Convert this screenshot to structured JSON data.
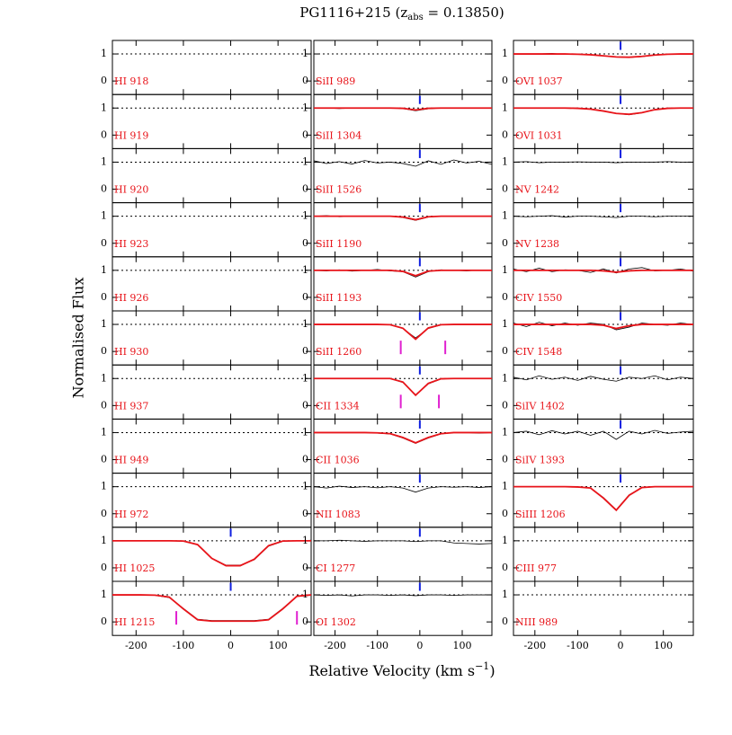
{
  "chart_data": {
    "type": "line",
    "title": "PG1116+215 (z",
    "title_sub": "abs",
    "title_end": " = 0.13850)",
    "x_label": "Relative Velocity (km s",
    "x_label_sup": "−1",
    "x_label_end": ")",
    "y_label": "Normalised Flux",
    "xlim": [
      -250,
      170
    ],
    "ylim": [
      -0.5,
      1.5
    ],
    "xticks": [
      -200,
      -100,
      0,
      100
    ],
    "yticks": [
      0,
      1
    ],
    "rows": 11,
    "data_color": "#000000",
    "model_color": "#e8141a",
    "label_color": "#e8141a",
    "component_color": "#1020e0",
    "blend_color": "#e020d0",
    "component": 0,
    "x": [
      -250,
      -220,
      -190,
      -160,
      -130,
      -100,
      -70,
      -40,
      -10,
      20,
      50,
      80,
      110,
      140,
      170
    ],
    "panels": [
      {
        "name": "HI 918"
      },
      {
        "name": "HI 919"
      },
      {
        "name": "HI 920"
      },
      {
        "name": "HI 923"
      },
      {
        "name": "HI 926"
      },
      {
        "name": "HI 930"
      },
      {
        "name": "HI 937"
      },
      {
        "name": "HI 949"
      },
      {
        "name": "HI 972"
      },
      {
        "name": "HI 1025",
        "values": [
          1,
          1,
          1,
          1,
          1,
          0.98,
          0.85,
          0.35,
          0.1,
          0.1,
          0.3,
          0.8,
          0.98,
          1,
          1.02
        ],
        "model": [
          1,
          1,
          1,
          1,
          1,
          0.99,
          0.86,
          0.35,
          0.08,
          0.08,
          0.32,
          0.82,
          0.99,
          1,
          1
        ]
      },
      {
        "name": "HI 1215",
        "values": [
          1,
          1,
          1,
          0.98,
          0.9,
          0.5,
          0.1,
          0.05,
          0.05,
          0.05,
          0.05,
          0.1,
          0.5,
          0.95,
          1
        ],
        "model": [
          1,
          1,
          1,
          0.99,
          0.92,
          0.48,
          0.08,
          0.03,
          0.03,
          0.03,
          0.03,
          0.08,
          0.48,
          0.95,
          1
        ],
        "blends": [
          -115,
          140
        ]
      },
      {
        "name": "SiII 989"
      },
      {
        "name": "SiII 1304",
        "values": [
          1,
          1,
          0.98,
          1,
          1,
          1,
          1,
          0.98,
          0.9,
          0.97,
          1,
          1,
          1,
          1,
          1
        ],
        "model": [
          1,
          1,
          1,
          1,
          1,
          1,
          1,
          0.99,
          0.93,
          0.99,
          1,
          1,
          1,
          1,
          1
        ]
      },
      {
        "name": "SiII 1526",
        "values": [
          1.05,
          0.95,
          1.02,
          0.93,
          1.06,
          0.97,
          1,
          0.95,
          0.85,
          1.05,
          0.92,
          1.08,
          0.97,
          1.03,
          0.92
        ]
      },
      {
        "name": "SiII 1190",
        "values": [
          1,
          1.02,
          0.98,
          1,
          1.01,
          0.99,
          1,
          0.95,
          0.85,
          0.97,
          1,
          1.01,
          1,
          0.99,
          1
        ],
        "model": [
          1,
          1,
          1,
          1,
          1,
          1,
          1,
          0.97,
          0.87,
          0.98,
          1,
          1,
          1,
          1,
          1
        ]
      },
      {
        "name": "SiII 1193",
        "values": [
          1,
          0.98,
          1.02,
          0.97,
          1,
          1.03,
          0.98,
          0.95,
          0.75,
          0.95,
          1.02,
          1,
          0.98,
          1.01,
          1
        ],
        "model": [
          1,
          1,
          1,
          1,
          1,
          1,
          1,
          0.96,
          0.8,
          0.97,
          1,
          1,
          1,
          1,
          1
        ]
      },
      {
        "name": "SiII 1260",
        "values": [
          1,
          1,
          1,
          1,
          1,
          1,
          0.98,
          0.85,
          0.5,
          0.85,
          0.98,
          1,
          1,
          1,
          1
        ],
        "model": [
          1,
          1,
          1,
          1,
          1,
          1,
          0.99,
          0.86,
          0.45,
          0.87,
          0.99,
          1,
          1,
          1,
          1
        ],
        "blends": [
          -45,
          60
        ]
      },
      {
        "name": "CII 1334",
        "values": [
          1,
          1,
          1,
          1,
          1,
          1,
          1,
          0.85,
          0.4,
          0.8,
          0.98,
          1,
          1,
          1,
          1
        ],
        "model": [
          1,
          1,
          1,
          1,
          1,
          1,
          1,
          0.87,
          0.38,
          0.82,
          0.99,
          1,
          1,
          1,
          1
        ],
        "blends": [
          -45,
          45
        ]
      },
      {
        "name": "CII 1036",
        "values": [
          1,
          1,
          1,
          1,
          1,
          0.98,
          0.95,
          0.8,
          0.6,
          0.8,
          0.95,
          1,
          1,
          0.98,
          1
        ],
        "model": [
          1,
          1,
          1,
          1,
          1,
          0.99,
          0.96,
          0.82,
          0.62,
          0.82,
          0.96,
          1,
          1,
          1,
          1
        ]
      },
      {
        "name": "NII 1083",
        "values": [
          1,
          0.95,
          1.02,
          0.97,
          1,
          0.96,
          1,
          0.95,
          0.8,
          0.95,
          1,
          0.98,
          1,
          0.97,
          1
        ]
      },
      {
        "name": "CI 1277",
        "values": [
          1,
          1,
          1.02,
          1,
          0.98,
          1,
          1,
          1,
          0.97,
          1,
          1,
          0.92,
          0.9,
          0.88,
          0.9
        ]
      },
      {
        "name": "OI 1302",
        "values": [
          1,
          0.98,
          1,
          0.96,
          1,
          1,
          0.98,
          1,
          0.97,
          1,
          1,
          0.98,
          1,
          1,
          1
        ]
      },
      {
        "name": "OVI 1037",
        "values": [
          1,
          1,
          1,
          1.02,
          0.98,
          1,
          0.97,
          0.93,
          0.88,
          0.87,
          0.9,
          0.96,
          1,
          1,
          1
        ],
        "model": [
          1,
          1,
          1,
          1,
          1,
          0.99,
          0.97,
          0.93,
          0.89,
          0.88,
          0.91,
          0.96,
          0.99,
          1,
          1
        ]
      },
      {
        "name": "OVI 1031",
        "values": [
          1,
          1,
          1,
          1,
          1,
          1,
          0.97,
          0.9,
          0.8,
          0.75,
          0.82,
          0.95,
          1,
          1,
          1
        ],
        "model": [
          1,
          1,
          1,
          1,
          1,
          0.99,
          0.96,
          0.89,
          0.8,
          0.77,
          0.83,
          0.94,
          0.99,
          1,
          1
        ]
      },
      {
        "name": "NV 1242",
        "values": [
          1,
          1.02,
          0.98,
          1,
          1,
          1.01,
          1,
          1,
          0.98,
          1,
          1,
          1,
          1.02,
          1,
          1
        ]
      },
      {
        "name": "NV 1238",
        "values": [
          1,
          0.98,
          1,
          1.02,
          0.97,
          1,
          1,
          0.98,
          0.95,
          1,
          1,
          0.98,
          1,
          1,
          1
        ]
      },
      {
        "name": "CIV 1550",
        "values": [
          1.05,
          0.95,
          1.08,
          0.95,
          1.02,
          1,
          0.92,
          1.05,
          0.9,
          1.05,
          1.1,
          0.98,
          1,
          1.05,
          0.97
        ],
        "model": [
          1,
          1,
          1,
          1,
          1,
          1,
          1,
          0.98,
          0.93,
          0.98,
          1,
          1,
          1,
          1,
          1
        ]
      },
      {
        "name": "CIV 1548",
        "values": [
          1.05,
          0.92,
          1.08,
          0.95,
          1.05,
          0.97,
          1.05,
          1,
          0.8,
          0.9,
          1.05,
          1,
          0.97,
          1.05,
          1
        ],
        "model": [
          1,
          1,
          1,
          1,
          1,
          1,
          1,
          0.97,
          0.85,
          0.95,
          1,
          1,
          1,
          1,
          1
        ]
      },
      {
        "name": "SiIV 1402",
        "values": [
          1.05,
          0.95,
          1.1,
          0.97,
          1.05,
          0.93,
          1.08,
          0.97,
          0.9,
          1.05,
          1,
          1.1,
          0.95,
          1.05,
          1
        ]
      },
      {
        "name": "SiIV 1393",
        "values": [
          1,
          1.05,
          0.92,
          1.07,
          0.95,
          1.05,
          0.9,
          1.05,
          0.75,
          1.05,
          0.95,
          1.08,
          0.97,
          1.02,
          1.05
        ]
      },
      {
        "name": "SiIII 1206",
        "values": [
          1,
          1,
          1,
          1,
          1,
          0.98,
          0.95,
          0.6,
          0.15,
          0.7,
          0.97,
          1,
          1,
          1,
          1
        ],
        "model": [
          1,
          1,
          1,
          1,
          1,
          0.99,
          0.95,
          0.58,
          0.13,
          0.68,
          0.97,
          1,
          1,
          1,
          1
        ]
      },
      {
        "name": "CIII 977"
      },
      {
        "name": "NIII 989"
      }
    ]
  }
}
